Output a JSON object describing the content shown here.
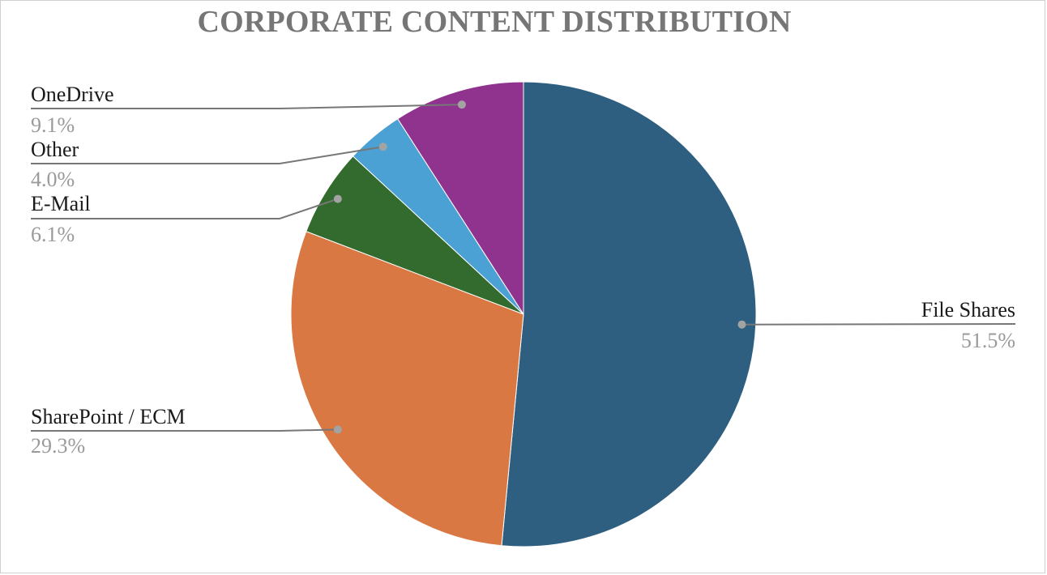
{
  "chart_data": {
    "type": "pie",
    "title": "CORPORATE CONTENT DISTRIBUTION",
    "start_angle_deg": 0,
    "direction": "clockwise",
    "slices": [
      {
        "label": "File Shares",
        "value": 51.5,
        "display": "51.5%",
        "color": "#2e5f80"
      },
      {
        "label": "SharePoint / ECM",
        "value": 29.3,
        "display": "29.3%",
        "color": "#d97842"
      },
      {
        "label": "E-Mail",
        "value": 6.1,
        "display": "6.1%",
        "color": "#336b2e"
      },
      {
        "label": "Other",
        "value": 4.0,
        "display": "4.0%",
        "color": "#4ba0d4"
      },
      {
        "label": "OneDrive",
        "value": 9.1,
        "display": "9.1%",
        "color": "#8f338e"
      }
    ],
    "leader_color": "#777777",
    "dot_color": "#a3a3a3",
    "legend": "none"
  }
}
